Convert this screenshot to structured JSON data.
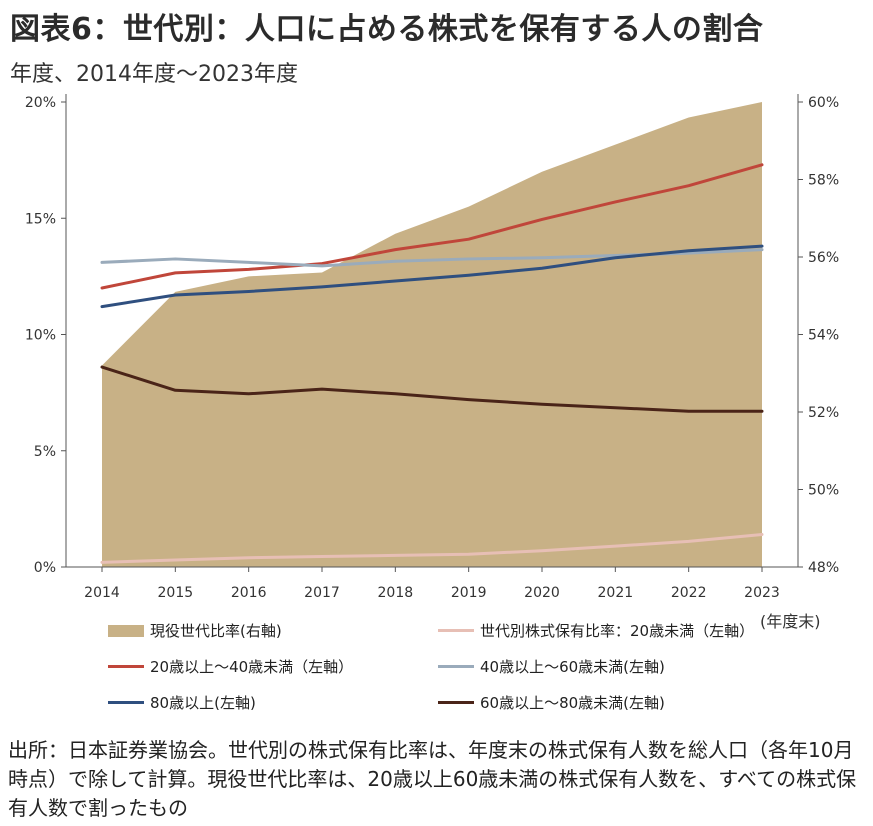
{
  "title": "図表6：世代別：人口に占める株式を保有する人の割合",
  "subtitle": "年度、2014年度～2023年度",
  "unit_label": "(年度末)",
  "source": "出所：日本証券業協会。世代別の株式保有比率は、年度末の株式保有人数を総人口（各年10月時点）で除して計算。現役世代比率は、20歳以上60歳未満の株式保有人数を、すべての株式保有人数で割ったもの",
  "chart_data": {
    "type": "line",
    "x": [
      "2014",
      "2015",
      "2016",
      "2017",
      "2018",
      "2019",
      "2020",
      "2021",
      "2022",
      "2023"
    ],
    "left_axis": {
      "ylim": [
        0,
        20
      ],
      "ticks": [
        "0%",
        "5%",
        "10%",
        "15%",
        "20%"
      ]
    },
    "right_axis": {
      "ylim": [
        48,
        60
      ],
      "ticks": [
        "48%",
        "50%",
        "52%",
        "54%",
        "56%",
        "58%",
        "60%"
      ]
    },
    "series": [
      {
        "name": "現役世代比率(右軸)",
        "type": "area",
        "axis": "right",
        "color": "#c8b186",
        "values": [
          53.2,
          55.1,
          55.5,
          55.6,
          56.6,
          57.3,
          58.2,
          58.9,
          59.6,
          60.0
        ]
      },
      {
        "name": "世代別株式保有比率：20歳未満（左軸）",
        "type": "line",
        "axis": "left",
        "color": "#e7bfb5",
        "values": [
          0.2,
          0.3,
          0.4,
          0.45,
          0.5,
          0.55,
          0.7,
          0.9,
          1.1,
          1.4
        ]
      },
      {
        "name": "20歳以上～40歳未満（左軸）",
        "type": "line",
        "axis": "left",
        "color": "#c0463a",
        "values": [
          12.0,
          12.65,
          12.8,
          13.05,
          13.65,
          14.1,
          14.95,
          15.7,
          16.4,
          17.3
        ]
      },
      {
        "name": "40歳以上～60歳未満(左軸)",
        "type": "line",
        "axis": "left",
        "color": "#9aabbb",
        "values": [
          13.1,
          13.25,
          13.1,
          12.95,
          13.15,
          13.25,
          13.3,
          13.4,
          13.5,
          13.65
        ]
      },
      {
        "name": "80歳以上(左軸)",
        "type": "line",
        "axis": "left",
        "color": "#2f4f7f",
        "values": [
          11.2,
          11.7,
          11.85,
          12.05,
          12.3,
          12.55,
          12.85,
          13.3,
          13.6,
          13.8
        ]
      },
      {
        "name": "60歳以上～80歳未満(左軸)",
        "type": "line",
        "axis": "left",
        "color": "#4a2418",
        "values": [
          8.6,
          7.6,
          7.45,
          7.65,
          7.45,
          7.2,
          7.0,
          6.85,
          6.7,
          6.7
        ]
      }
    ],
    "legend_position": "bottom",
    "grid": false
  }
}
